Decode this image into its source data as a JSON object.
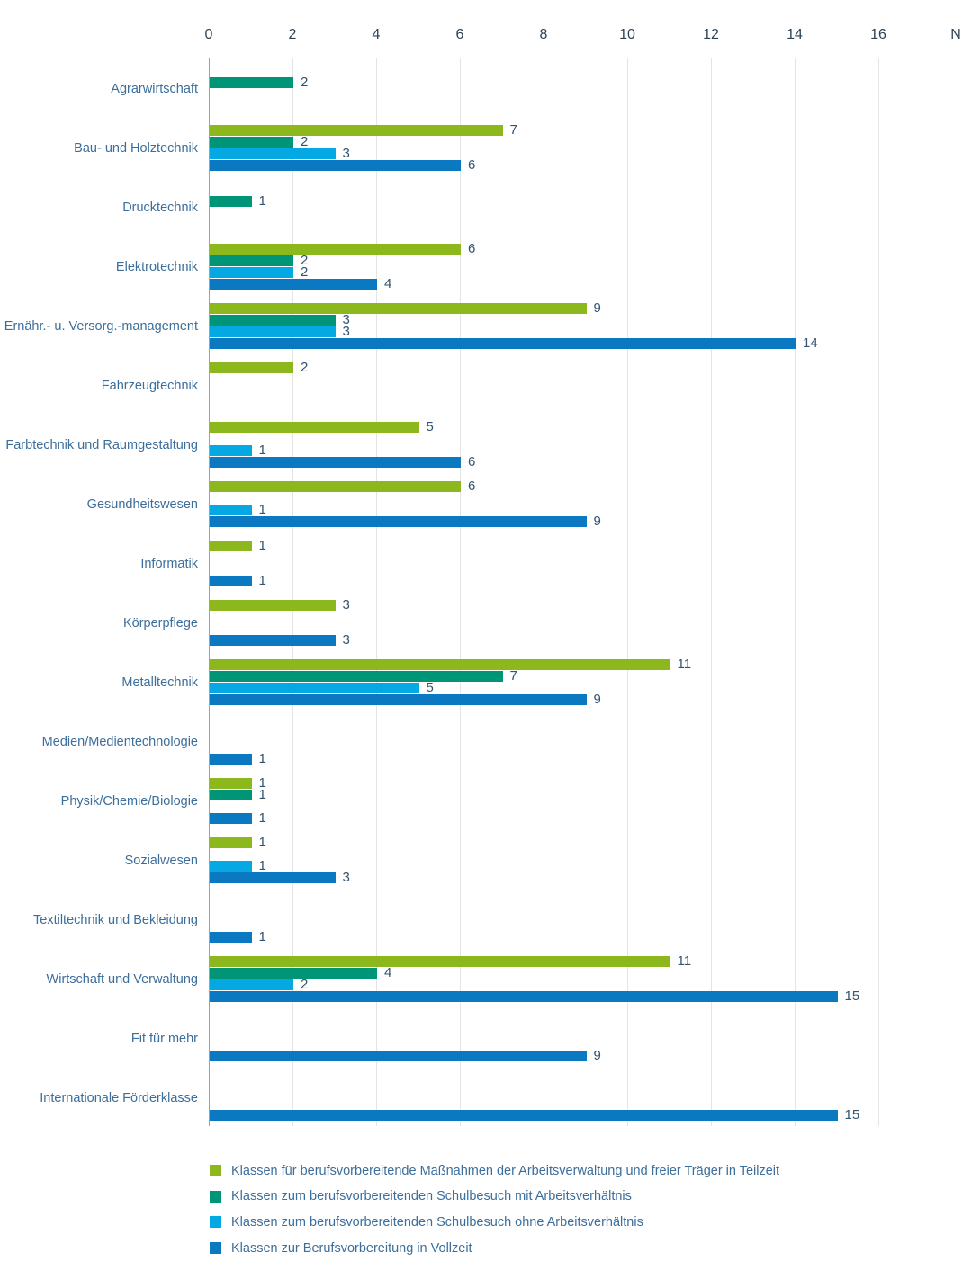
{
  "chart_data": {
    "type": "bar",
    "orientation": "horizontal",
    "title": "",
    "axis_unit_label": "N",
    "xlim": [
      0,
      16
    ],
    "xticks": [
      0,
      2,
      4,
      6,
      8,
      10,
      12,
      14,
      16
    ],
    "grid": true,
    "legend_position": "bottom",
    "categories": [
      "Agrarwirtschaft",
      "Bau- und Holztechnik",
      "Drucktechnik",
      "Elektrotechnik",
      "Ernähr.- u. Versorg.-management",
      "Fahrzeugtechnik",
      "Farbtechnik und Raumgestaltung",
      "Gesundheitswesen",
      "Informatik",
      "Körperpflege",
      "Metalltechnik",
      "Medien/Medientechnologie",
      "Physik/Chemie/Biologie",
      "Sozialwesen",
      "Textiltechnik und Bekleidung",
      "Wirtschaft und Verwaltung",
      "Fit für mehr",
      "Internationale Förderklasse"
    ],
    "series": [
      {
        "name": "Klassen für berufsvorbereitende Maßnahmen der Arbeitsverwaltung und freier Träger in Teilzeit",
        "color": "#8cb81e",
        "values": [
          0,
          7,
          0,
          6,
          9,
          2,
          5,
          6,
          1,
          3,
          11,
          0,
          1,
          1,
          0,
          11,
          0,
          0
        ]
      },
      {
        "name": "Klassen zum berufsvorbereitenden Schulbesuch mit Arbeitsverhältnis",
        "color": "#009577",
        "values": [
          2,
          2,
          1,
          2,
          3,
          0,
          0,
          0,
          0,
          0,
          7,
          0,
          1,
          0,
          0,
          4,
          0,
          0
        ]
      },
      {
        "name": "Klassen zum berufsvorbereitenden Schulbesuch ohne Arbeitsverhältnis",
        "color": "#04a8e2",
        "values": [
          0,
          3,
          0,
          2,
          3,
          0,
          1,
          1,
          0,
          0,
          5,
          0,
          0,
          1,
          0,
          2,
          0,
          0
        ]
      },
      {
        "name": "Klassen zur Berufsvorbereitung in Vollzeit",
        "color": "#0b79c2",
        "values": [
          0,
          6,
          0,
          4,
          14,
          0,
          6,
          9,
          1,
          3,
          9,
          1,
          1,
          3,
          1,
          15,
          9,
          15
        ]
      }
    ]
  },
  "colors": {
    "background": "#ffffff",
    "axis_line": "#92a5b7",
    "gridline": "#e4e4e4",
    "tick_label": "#2c4257",
    "category_label": "#3c6e9b",
    "value_label": "#33536f"
  }
}
